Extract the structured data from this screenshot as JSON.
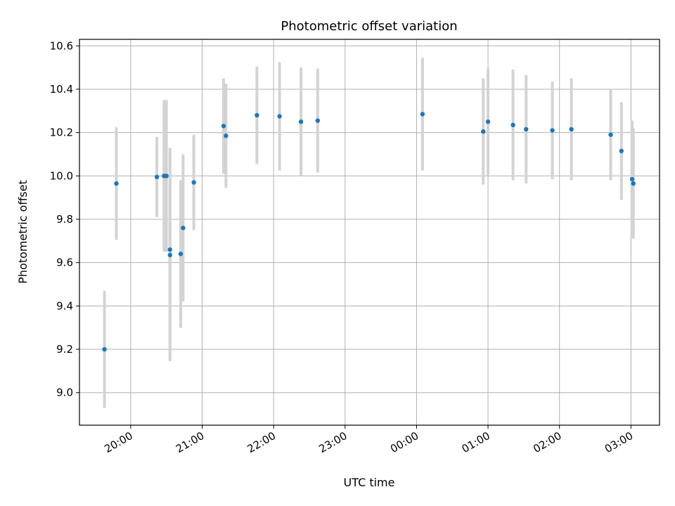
{
  "chart_data": {
    "type": "scatter",
    "title": "Photometric offset variation",
    "xlabel": "UTC time",
    "ylabel": "Photometric offset",
    "x_axis": {
      "unit": "UTC hours",
      "range": [
        "19:17",
        "03:24"
      ],
      "ticks": [
        {
          "time": "20:00",
          "label": "20:00"
        },
        {
          "time": "21:00",
          "label": "21:00"
        },
        {
          "time": "22:00",
          "label": "22:00"
        },
        {
          "time": "23:00",
          "label": "23:00"
        },
        {
          "time": "00:00",
          "label": "00:00"
        },
        {
          "time": "01:00",
          "label": "01:00"
        },
        {
          "time": "02:00",
          "label": "02:00"
        },
        {
          "time": "03:00",
          "label": "03:00"
        }
      ],
      "tick_label_rotation_deg": 30
    },
    "y_axis": {
      "range": [
        8.85,
        10.63
      ],
      "ticks": [
        9.0,
        9.2,
        9.4,
        9.6,
        9.8,
        10.0,
        10.2,
        10.4,
        10.6
      ],
      "tick_labels": [
        "9.0",
        "9.2",
        "9.4",
        "9.6",
        "9.8",
        "10.0",
        "10.2",
        "10.4",
        "10.6"
      ]
    },
    "grid": true,
    "legend": "none",
    "marker_color": "#1f77b4",
    "errorbar_color": "#d3d3d3",
    "points": [
      {
        "time": "19:38",
        "y": 9.2,
        "err": 0.27
      },
      {
        "time": "19:48",
        "y": 9.965,
        "err": 0.26
      },
      {
        "time": "20:22",
        "y": 9.995,
        "err": 0.185
      },
      {
        "time": "20:28",
        "y": 10.0,
        "err": 0.35
      },
      {
        "time": "20:30",
        "y": 10.0,
        "err": 0.35
      },
      {
        "time": "20:33",
        "y": 9.66,
        "err": 0.47
      },
      {
        "time": "20:33",
        "y": 9.635,
        "err": 0.49
      },
      {
        "time": "20:42",
        "y": 9.64,
        "err": 0.34
      },
      {
        "time": "20:44",
        "y": 9.76,
        "err": 0.34
      },
      {
        "time": "20:53",
        "y": 9.97,
        "err": 0.22
      },
      {
        "time": "21:18",
        "y": 10.23,
        "err": 0.22
      },
      {
        "time": "21:20",
        "y": 10.185,
        "err": 0.24
      },
      {
        "time": "21:46",
        "y": 10.28,
        "err": 0.225
      },
      {
        "time": "22:05",
        "y": 10.275,
        "err": 0.25
      },
      {
        "time": "22:23",
        "y": 10.25,
        "err": 0.25
      },
      {
        "time": "22:37",
        "y": 10.255,
        "err": 0.24
      },
      {
        "time": "00:05",
        "y": 10.285,
        "err": 0.26
      },
      {
        "time": "00:56",
        "y": 10.205,
        "err": 0.245
      },
      {
        "time": "01:00",
        "y": 10.25,
        "err": 0.245
      },
      {
        "time": "01:21",
        "y": 10.235,
        "err": 0.255
      },
      {
        "time": "01:32",
        "y": 10.215,
        "err": 0.25
      },
      {
        "time": "01:54",
        "y": 10.21,
        "err": 0.225
      },
      {
        "time": "02:10",
        "y": 10.215,
        "err": 0.235
      },
      {
        "time": "02:43",
        "y": 10.19,
        "err": 0.21
      },
      {
        "time": "02:52",
        "y": 10.115,
        "err": 0.225
      },
      {
        "time": "03:01",
        "y": 9.985,
        "err": 0.27
      },
      {
        "time": "03:02",
        "y": 9.965,
        "err": 0.255
      }
    ]
  }
}
